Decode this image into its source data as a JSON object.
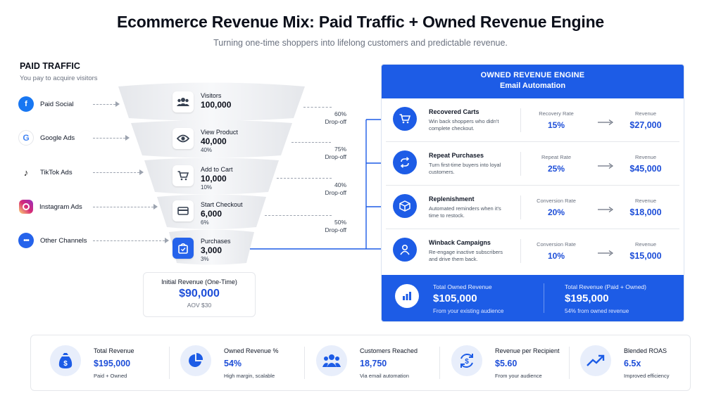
{
  "title": "Ecommerce Revenue Mix: Paid Traffic + Owned Revenue Engine",
  "subtitle": "Turning one-time shoppers into lifelong customers and predictable revenue.",
  "paid": {
    "heading": "PAID TRAFFIC",
    "subheading": "You pay to acquire visitors",
    "channels": [
      {
        "label": "Paid Social",
        "icon": "facebook-icon",
        "color": "#1877f2"
      },
      {
        "label": "Google Ads",
        "icon": "google-icon",
        "color": "#ffffff"
      },
      {
        "label": "TikTok Ads",
        "icon": "tiktok-icon",
        "color": "#ffffff"
      },
      {
        "label": "Instagram Ads",
        "icon": "instagram-icon",
        "color": "#d62976"
      },
      {
        "label": "Other Channels",
        "icon": "more-icon",
        "color": "#2563eb"
      }
    ]
  },
  "funnel": {
    "stages": [
      {
        "name": "Visitors",
        "value": "100,000",
        "pct": "",
        "icon": "users-icon"
      },
      {
        "name": "View Product",
        "value": "40,000",
        "pct": "40%",
        "icon": "eye-icon"
      },
      {
        "name": "Add to Cart",
        "value": "10,000",
        "pct": "10%",
        "icon": "cart-icon"
      },
      {
        "name": "Start Checkout",
        "value": "6,000",
        "pct": "6%",
        "icon": "card-icon"
      },
      {
        "name": "Purchases",
        "value": "3,000",
        "pct": "3%",
        "icon": "bag-icon"
      }
    ],
    "dropoffs": [
      {
        "pct": "60%",
        "label": "Drop-off"
      },
      {
        "pct": "75%",
        "label": "Drop-off"
      },
      {
        "pct": "40%",
        "label": "Drop-off"
      },
      {
        "pct": "50%",
        "label": "Drop-off"
      }
    ]
  },
  "initial_revenue": {
    "label": "Initial Revenue (One-Time)",
    "value": "$90,000",
    "sub": "AOV $30"
  },
  "engine": {
    "heading1": "OWNED REVENUE ENGINE",
    "heading2": "Email Automation",
    "rows": [
      {
        "title": "Recovered Carts",
        "desc": "Win back shoppers who didn't complete checkout.",
        "metric_label": "Recovery Rate",
        "metric_value": "15%",
        "revenue_label": "Revenue",
        "revenue_value": "$27,000",
        "icon": "cart-icon"
      },
      {
        "title": "Repeat Purchases",
        "desc": "Turn first-time buyers into loyal customers.",
        "metric_label": "Repeat Rate",
        "metric_value": "25%",
        "revenue_label": "Revenue",
        "revenue_value": "$45,000",
        "icon": "repeat-icon"
      },
      {
        "title": "Replenishment",
        "desc": "Automated reminders when it's time to restock.",
        "metric_label": "Conversion Rate",
        "metric_value": "20%",
        "revenue_label": "Revenue",
        "revenue_value": "$18,000",
        "icon": "box-icon"
      },
      {
        "title": "Winback Campaigns",
        "desc": "Re-engage inactive subscribers and drive them back.",
        "metric_label": "Conversion Rate",
        "metric_value": "10%",
        "revenue_label": "Revenue",
        "revenue_value": "$15,000",
        "icon": "user-icon"
      }
    ],
    "footer": {
      "owned_label": "Total Owned Revenue",
      "owned_value": "$105,000",
      "owned_sub": "From your existing audience",
      "total_label": "Total Revenue (Paid + Owned)",
      "total_value": "$195,000",
      "total_sub": "54% from owned revenue"
    }
  },
  "kpis": [
    {
      "label": "Total Revenue",
      "value": "$195,000",
      "sub": "Paid + Owned",
      "icon": "money-bag-icon"
    },
    {
      "label": "Owned Revenue %",
      "value": "54%",
      "sub": "High margin, scalable",
      "icon": "pie-chart-icon"
    },
    {
      "label": "Customers Reached",
      "value": "18,750",
      "sub": "Via email automation",
      "icon": "users-icon"
    },
    {
      "label": "Revenue per Recipient",
      "value": "$5.60",
      "sub": "From your audience",
      "icon": "dollar-cycle-icon"
    },
    {
      "label": "Blended ROAS",
      "value": "6.5x",
      "sub": "Improved efficiency",
      "icon": "trend-up-icon"
    }
  ],
  "colors": {
    "brand_blue": "#1d5ce6",
    "value_blue": "#1d4ed8"
  }
}
